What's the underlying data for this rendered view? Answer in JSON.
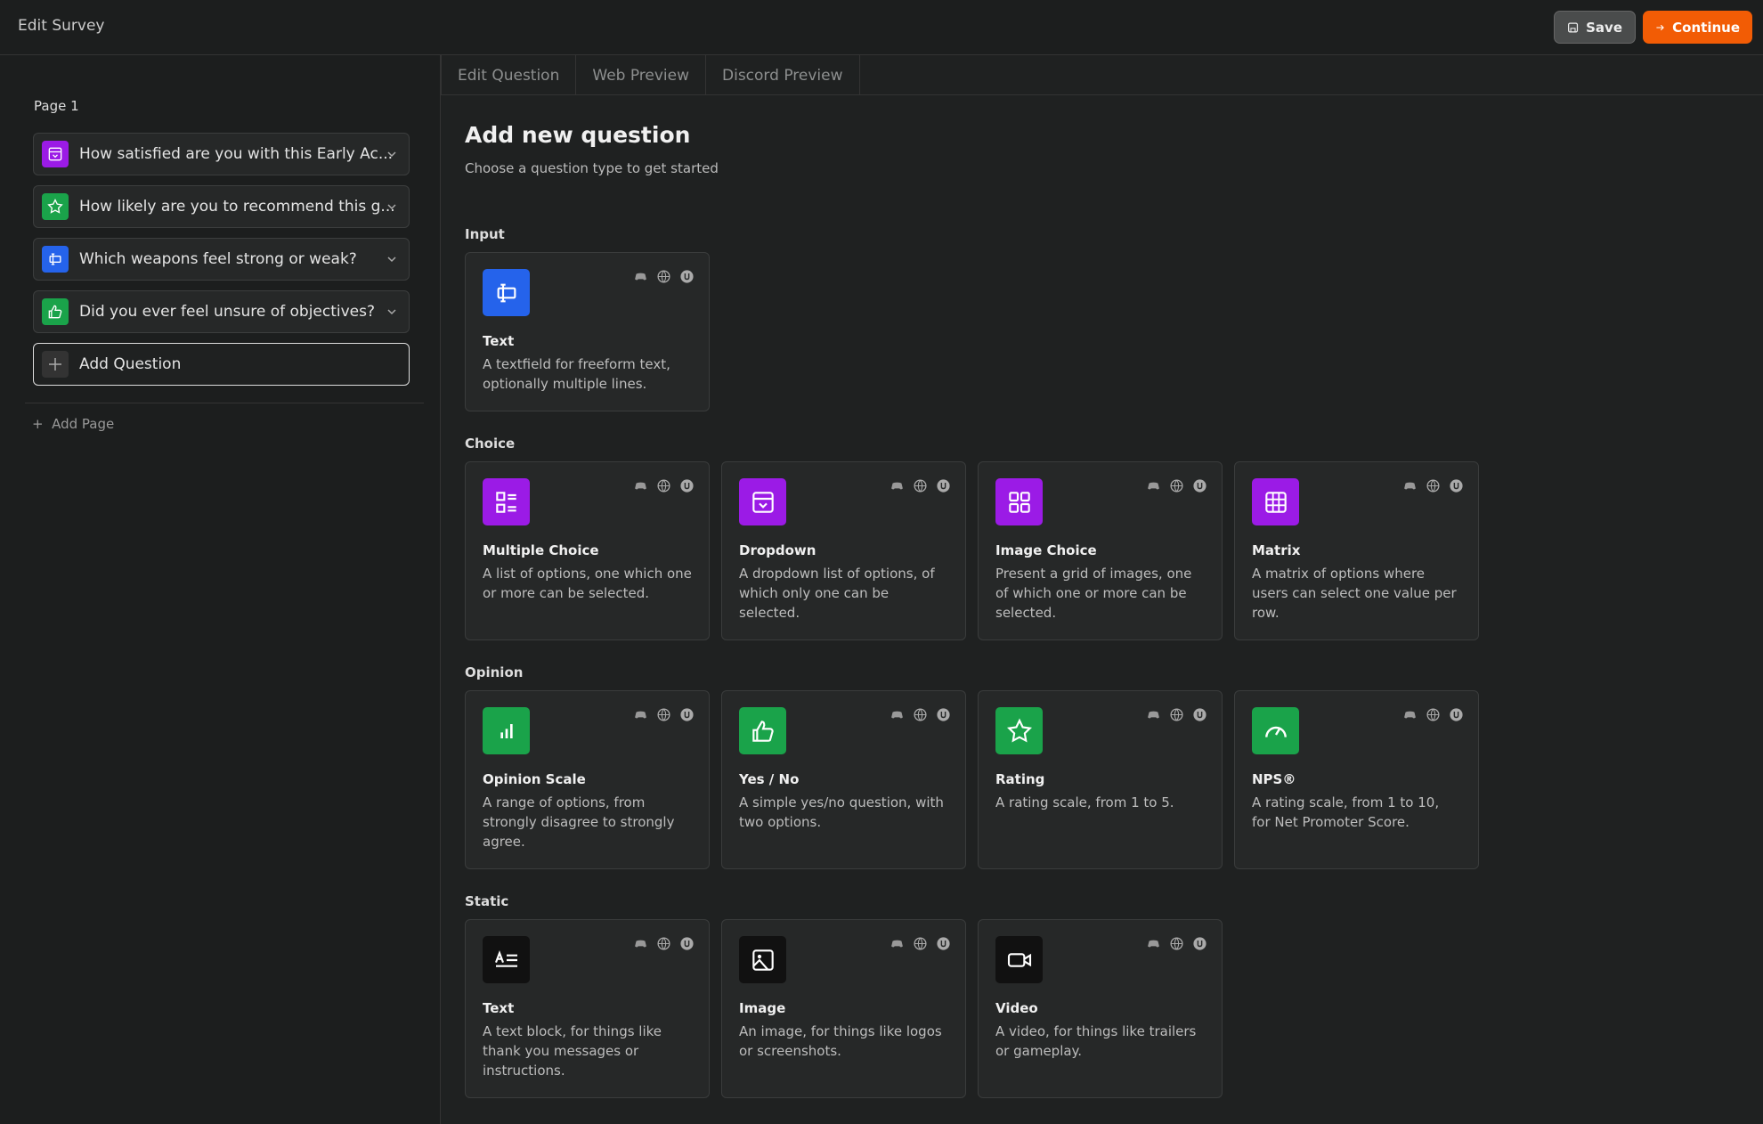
{
  "header": {
    "title": "Edit Survey",
    "save": "Save",
    "continue": "Continue"
  },
  "sidebar": {
    "page_label": "Page 1",
    "questions": [
      "How satisfied are you with this Early Ac...",
      "How likely are you to recommend this g...",
      "Which weapons feel strong or weak?",
      "Did you ever feel unsure of objectives?"
    ],
    "add_question": "Add Question",
    "add_page": "Add Page"
  },
  "tabs": [
    "Edit Question",
    "Web Preview",
    "Discord Preview"
  ],
  "main": {
    "title": "Add new question",
    "subtitle": "Choose a question type to get started",
    "sections": [
      {
        "label": "Input",
        "cards": [
          {
            "title": "Text",
            "description": "A textfield for freeform text, optionally multiple lines."
          }
        ]
      },
      {
        "label": "Choice",
        "cards": [
          {
            "title": "Multiple Choice",
            "description": "A list of options, one which one or more can be selected."
          },
          {
            "title": "Dropdown",
            "description": "A dropdown list of options, of which only one can be selected."
          },
          {
            "title": "Image Choice",
            "description": "Present a grid of images, one of which one or more can be selected."
          },
          {
            "title": "Matrix",
            "description": "A matrix of options where users can select one value per row."
          }
        ]
      },
      {
        "label": "Opinion",
        "cards": [
          {
            "title": "Opinion Scale",
            "description": "A range of options, from strongly disagree to strongly agree."
          },
          {
            "title": "Yes / No",
            "description": "A simple yes/no question, with two options."
          },
          {
            "title": "Rating",
            "description": "A rating scale, from 1 to 5."
          },
          {
            "title": "NPS®",
            "description": "A rating scale, from 1 to 10, for Net Promoter Score."
          }
        ]
      },
      {
        "label": "Static",
        "cards": [
          {
            "title": "Text",
            "description": "A text block, for things like thank you messages or instructions."
          },
          {
            "title": "Image",
            "description": "An image, for things like logos or screenshots."
          },
          {
            "title": "Video",
            "description": "A video, for things like trailers or gameplay."
          }
        ]
      }
    ]
  }
}
